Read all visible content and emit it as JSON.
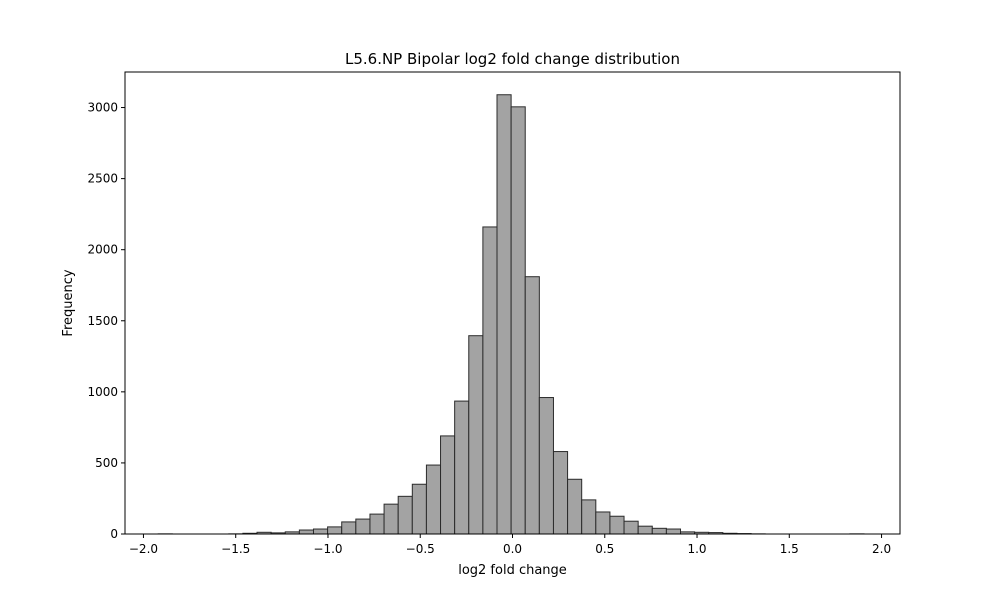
{
  "colors": {
    "bar_fill": "#a3a3a3",
    "bar_stroke": "#2b2b2b",
    "axes": "#000000",
    "background": "#ffffff"
  },
  "chart_data": {
    "type": "bar",
    "title": "L5.6.NP Bipolar log2 fold change distribution",
    "xlabel": "log2 fold change",
    "ylabel": "Frequency",
    "xlim": [
      -2.1,
      2.1
    ],
    "ylim": [
      0,
      3250
    ],
    "grid": false,
    "legend": "none",
    "xticks": [
      -2.0,
      -1.5,
      -1.0,
      -0.5,
      0.0,
      0.5,
      1.0,
      1.5,
      2.0
    ],
    "xtick_labels": [
      "−2.0",
      "−1.5",
      "−1.0",
      "−0.5",
      "0.0",
      "0.5",
      "1.0",
      "1.5",
      "2.0"
    ],
    "yticks": [
      0,
      500,
      1000,
      1500,
      2000,
      2500,
      3000
    ],
    "ytick_labels": [
      "0",
      "500",
      "1000",
      "1500",
      "2000",
      "2500",
      "3000"
    ],
    "bin_width": 0.0765,
    "bin_left_edges": [
      -1.92,
      -1.8435,
      -1.767,
      -1.6905,
      -1.614,
      -1.5375,
      -1.461,
      -1.3845,
      -1.308,
      -1.2315,
      -1.155,
      -1.0785,
      -1.002,
      -0.9255,
      -0.849,
      -0.7725,
      -0.696,
      -0.6195,
      -0.543,
      -0.4665,
      -0.39,
      -0.3135,
      -0.237,
      -0.1605,
      -0.084,
      -0.0075,
      0.069,
      0.1455,
      0.222,
      0.2985,
      0.375,
      0.4515,
      0.528,
      0.6045,
      0.681,
      0.7575,
      0.834,
      0.9105,
      0.987,
      1.0635,
      1.14,
      1.2165,
      1.293,
      1.3695,
      1.446,
      1.5225,
      1.599,
      1.6755,
      1.752,
      1.8285
    ],
    "values": [
      1,
      0,
      0,
      0,
      0,
      1,
      5,
      12,
      8,
      15,
      28,
      35,
      50,
      85,
      105,
      140,
      210,
      265,
      350,
      485,
      690,
      935,
      1395,
      2160,
      3090,
      3005,
      1810,
      960,
      580,
      385,
      240,
      155,
      125,
      90,
      55,
      40,
      35,
      15,
      12,
      10,
      5,
      3,
      1,
      0,
      0,
      0,
      0,
      0,
      0,
      1
    ]
  }
}
